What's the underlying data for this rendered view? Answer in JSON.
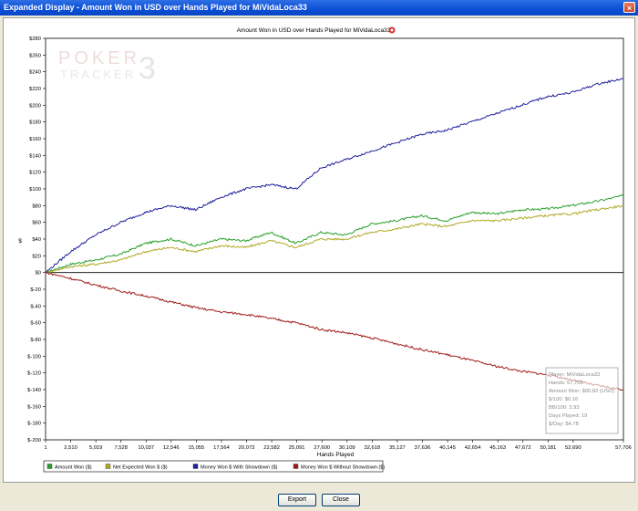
{
  "window": {
    "title": "Expanded Display - Amount Won in USD over Hands Played for MiVidaLoca33",
    "close_glyph": "×"
  },
  "buttons": {
    "export": "Export",
    "close": "Close"
  },
  "watermark": {
    "line1": "POKER",
    "line2": "TRACKER",
    "num": "3"
  },
  "colors": {
    "amount_won": "#2aa02a",
    "net_expected": "#b0a826",
    "with_showdown": "#20209a",
    "without_showdown": "#a01c1c"
  },
  "stats_box": {
    "lines": [
      "Player: MiVidaLoca33",
      "Hands: 57,706",
      "Amount Won: $90.82 (USD)",
      "$/100: $0.16",
      "BB/100: 3.93",
      "Days Played: 19",
      "$/Day: $4.78"
    ]
  },
  "chart_data": {
    "type": "line",
    "title": "Amount Won in USD over Hands Played for MiVidaLoca33",
    "xlabel": "Hands Played",
    "ylabel": "$",
    "xlim": [
      1,
      57706
    ],
    "ylim": [
      -200,
      280
    ],
    "y_ticks": [
      280,
      260,
      240,
      220,
      200,
      180,
      160,
      140,
      120,
      100,
      80,
      60,
      40,
      20,
      0,
      -20,
      -40,
      -60,
      -80,
      -100,
      -120,
      -140,
      -160,
      -180,
      -200
    ],
    "y_tick_labels": [
      "$280",
      "$260",
      "$240",
      "$220",
      "$200",
      "$180",
      "$160",
      "$140",
      "$120",
      "$100",
      "$80",
      "$60",
      "$40",
      "$20",
      "$0",
      "$-20",
      "$-40",
      "$-60",
      "$-80",
      "$-100",
      "$-120",
      "$-140",
      "$-160",
      "$-180",
      "$-200"
    ],
    "x_ticks": [
      1,
      2510,
      5019,
      7528,
      10037,
      12546,
      15055,
      17564,
      20073,
      22582,
      25091,
      27600,
      30109,
      32618,
      35127,
      37636,
      40145,
      42654,
      45163,
      47672,
      50181,
      52690,
      57706
    ],
    "x_tick_labels": [
      "1",
      "2,510",
      "5,019",
      "7,528",
      "10,037",
      "12,546",
      "15,055",
      "17,564",
      "20,073",
      "22,582",
      "25,091",
      "27,600",
      "30,109",
      "32,618",
      "35,127",
      "37,636",
      "40,145",
      "42,654",
      "45,163",
      "47,672",
      "50,181",
      "52,690",
      "57,706"
    ],
    "legend_position": "bottom-left",
    "series": [
      {
        "name": "Amount Won ($)",
        "x": [
          1,
          2500,
          5000,
          7500,
          10000,
          12500,
          15000,
          17500,
          20000,
          22500,
          25000,
          27500,
          30000,
          32500,
          35000,
          37500,
          40000,
          42500,
          45000,
          47500,
          50000,
          52500,
          55000,
          57706
        ],
        "y": [
          0,
          10,
          15,
          22,
          35,
          40,
          32,
          40,
          38,
          48,
          35,
          48,
          45,
          58,
          62,
          68,
          62,
          72,
          70,
          75,
          76,
          80,
          85,
          92
        ]
      },
      {
        "name": "Net Expected Won $ ($)",
        "x": [
          1,
          2500,
          5000,
          7500,
          10000,
          12500,
          15000,
          17500,
          20000,
          22500,
          25000,
          27500,
          30000,
          32500,
          35000,
          37500,
          40000,
          42500,
          45000,
          47500,
          50000,
          52500,
          55000,
          57706
        ],
        "y": [
          0,
          7,
          10,
          15,
          25,
          30,
          25,
          32,
          30,
          38,
          30,
          40,
          40,
          48,
          52,
          58,
          55,
          62,
          62,
          65,
          68,
          70,
          75,
          80
        ]
      },
      {
        "name": "Money Won $ With Showdown ($)",
        "x": [
          1,
          2500,
          5000,
          7500,
          10000,
          12500,
          15000,
          17500,
          20000,
          22500,
          25000,
          27500,
          30000,
          32500,
          35000,
          37500,
          40000,
          42500,
          45000,
          47500,
          50000,
          52500,
          55000,
          57706
        ],
        "y": [
          0,
          25,
          45,
          60,
          72,
          80,
          75,
          90,
          100,
          105,
          100,
          125,
          135,
          145,
          155,
          165,
          170,
          180,
          190,
          200,
          210,
          215,
          225,
          232
        ]
      },
      {
        "name": "Money Won $ Without Showdown ($)",
        "x": [
          1,
          2500,
          5000,
          7500,
          10000,
          12500,
          15000,
          17500,
          20000,
          22500,
          25000,
          27500,
          30000,
          32500,
          35000,
          37500,
          40000,
          42500,
          45000,
          47500,
          50000,
          52500,
          55000,
          57706
        ],
        "y": [
          0,
          -7,
          -15,
          -22,
          -28,
          -35,
          -42,
          -47,
          -50,
          -55,
          -60,
          -68,
          -72,
          -78,
          -85,
          -92,
          -98,
          -105,
          -112,
          -118,
          -122,
          -128,
          -135,
          -140
        ]
      }
    ]
  }
}
